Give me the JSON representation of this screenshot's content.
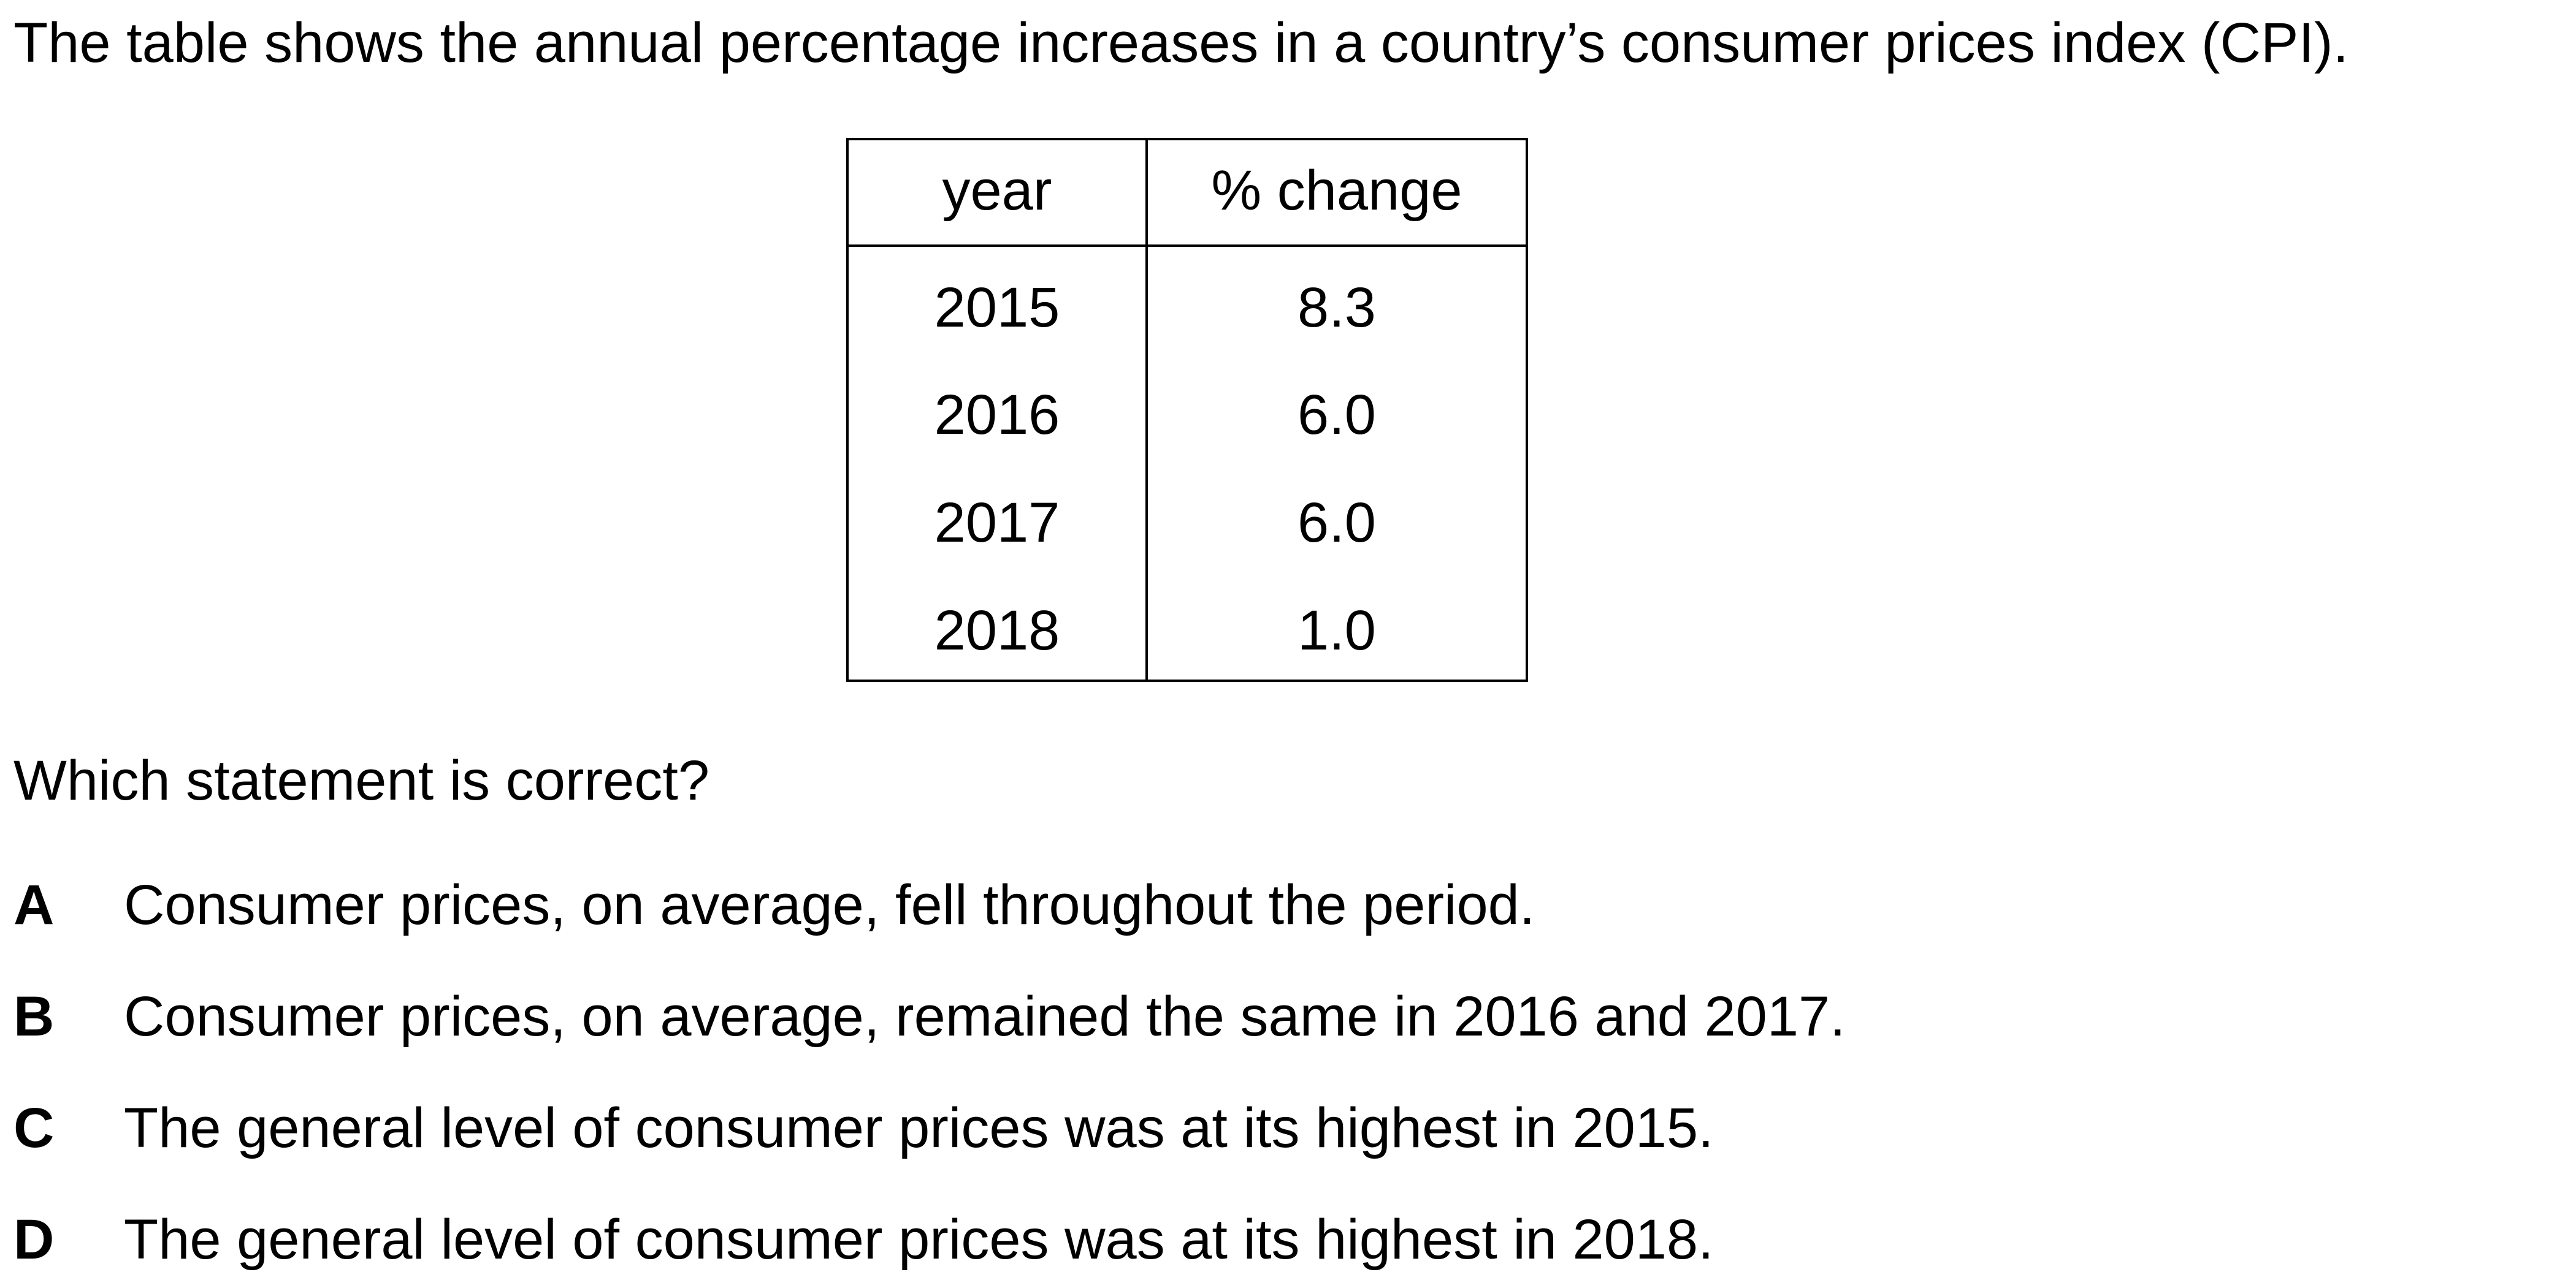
{
  "intro": "The table shows the annual percentage increases in a country’s consumer prices index (CPI).",
  "table": {
    "headers": [
      "year",
      "% change"
    ],
    "rows": [
      [
        "2015",
        "8.3"
      ],
      [
        "2016",
        "6.0"
      ],
      [
        "2017",
        "6.0"
      ],
      [
        "2018",
        "1.0"
      ]
    ]
  },
  "question": "Which statement is correct?",
  "options": [
    {
      "letter": "A",
      "text": "Consumer prices, on average, fell throughout the period."
    },
    {
      "letter": "B",
      "text": "Consumer prices, on average, remained the same in 2016 and 2017."
    },
    {
      "letter": "C",
      "text": "The general level of consumer prices was at its highest in 2015."
    },
    {
      "letter": "D",
      "text": "The general level of consumer prices was at its highest in 2018."
    }
  ]
}
